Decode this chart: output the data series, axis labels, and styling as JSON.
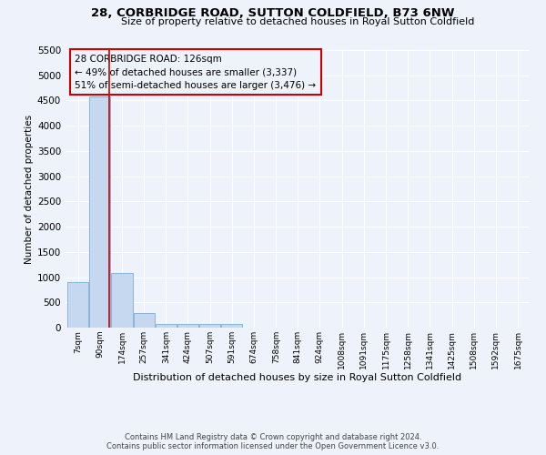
{
  "title": "28, CORBRIDGE ROAD, SUTTON COLDFIELD, B73 6NW",
  "subtitle": "Size of property relative to detached houses in Royal Sutton Coldfield",
  "xlabel": "Distribution of detached houses by size in Royal Sutton Coldfield",
  "ylabel": "Number of detached properties",
  "footer1": "Contains HM Land Registry data © Crown copyright and database right 2024.",
  "footer2": "Contains public sector information licensed under the Open Government Licence v3.0.",
  "annotation_line1": "28 CORBRIDGE ROAD: 126sqm",
  "annotation_line2": "← 49% of detached houses are smaller (3,337)",
  "annotation_line3": "51% of semi-detached houses are larger (3,476) →",
  "bar_color": "#c5d8f0",
  "bar_edge_color": "#7bafd4",
  "vline_color": "#cc0000",
  "vline_x": 126,
  "annotation_box_edge_color": "#cc0000",
  "categories": [
    7,
    90,
    174,
    257,
    341,
    424,
    507,
    591,
    674,
    758,
    841,
    924,
    1008,
    1091,
    1175,
    1258,
    1341,
    1425,
    1508,
    1592,
    1675
  ],
  "values": [
    900,
    4575,
    1075,
    295,
    80,
    65,
    65,
    65,
    0,
    0,
    0,
    0,
    0,
    0,
    0,
    0,
    0,
    0,
    0,
    0,
    0
  ],
  "ylim": [
    0,
    5500
  ],
  "yticks": [
    0,
    500,
    1000,
    1500,
    2000,
    2500,
    3000,
    3500,
    4000,
    4500,
    5000,
    5500
  ],
  "bg_color": "#eef2fa",
  "grid_color": "#ffffff",
  "bin_width": 83
}
